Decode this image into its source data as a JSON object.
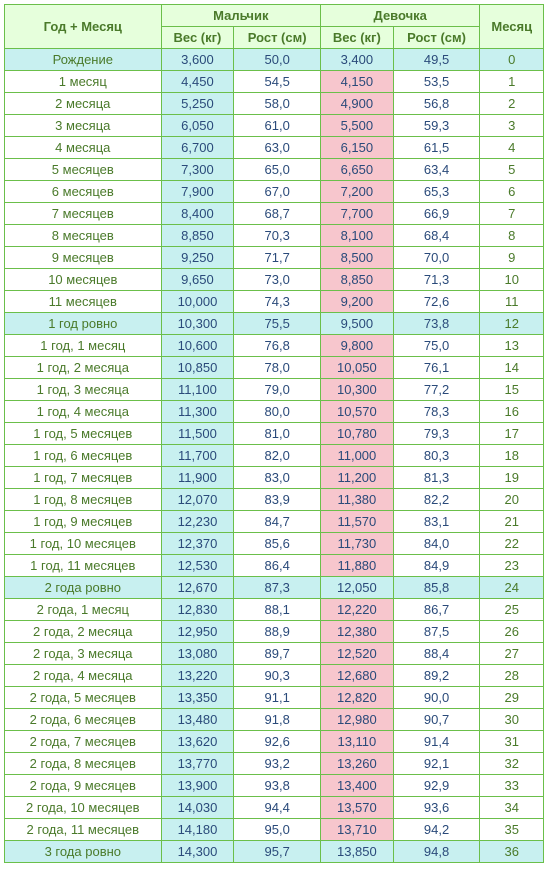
{
  "headers": {
    "age": "Год + Месяц",
    "boy": "Мальчик",
    "girl": "Девочка",
    "month": "Месяц",
    "weight": "Вес (кг)",
    "height": "Рост (см)"
  },
  "colors": {
    "border": "#6bbf4a",
    "header_bg": "#e6ffdc",
    "header_fg": "#4a7a2a",
    "boy_weight_bg": "#c8f0f0",
    "girl_weight_bg": "#f7c6cd",
    "value_fg": "#2a4a7a",
    "milestone_bg": "#c8f0f0"
  },
  "rows": [
    {
      "age": "Рождение",
      "bw": "3,600",
      "bh": "50,0",
      "gw": "3,400",
      "gh": "49,5",
      "m": "0",
      "milestone": true
    },
    {
      "age": "1 месяц",
      "bw": "4,450",
      "bh": "54,5",
      "gw": "4,150",
      "gh": "53,5",
      "m": "1"
    },
    {
      "age": "2 месяца",
      "bw": "5,250",
      "bh": "58,0",
      "gw": "4,900",
      "gh": "56,8",
      "m": "2"
    },
    {
      "age": "3 месяца",
      "bw": "6,050",
      "bh": "61,0",
      "gw": "5,500",
      "gh": "59,3",
      "m": "3"
    },
    {
      "age": "4 месяца",
      "bw": "6,700",
      "bh": "63,0",
      "gw": "6,150",
      "gh": "61,5",
      "m": "4"
    },
    {
      "age": "5 месяцев",
      "bw": "7,300",
      "bh": "65,0",
      "gw": "6,650",
      "gh": "63,4",
      "m": "5"
    },
    {
      "age": "6 месяцев",
      "bw": "7,900",
      "bh": "67,0",
      "gw": "7,200",
      "gh": "65,3",
      "m": "6"
    },
    {
      "age": "7 месяцев",
      "bw": "8,400",
      "bh": "68,7",
      "gw": "7,700",
      "gh": "66,9",
      "m": "7"
    },
    {
      "age": "8 месяцев",
      "bw": "8,850",
      "bh": "70,3",
      "gw": "8,100",
      "gh": "68,4",
      "m": "8"
    },
    {
      "age": "9 месяцев",
      "bw": "9,250",
      "bh": "71,7",
      "gw": "8,500",
      "gh": "70,0",
      "m": "9"
    },
    {
      "age": "10 месяцев",
      "bw": "9,650",
      "bh": "73,0",
      "gw": "8,850",
      "gh": "71,3",
      "m": "10"
    },
    {
      "age": "11 месяцев",
      "bw": "10,000",
      "bh": "74,3",
      "gw": "9,200",
      "gh": "72,6",
      "m": "11"
    },
    {
      "age": "1 год ровно",
      "bw": "10,300",
      "bh": "75,5",
      "gw": "9,500",
      "gh": "73,8",
      "m": "12",
      "milestone": true
    },
    {
      "age": "1 год, 1 месяц",
      "bw": "10,600",
      "bh": "76,8",
      "gw": "9,800",
      "gh": "75,0",
      "m": "13"
    },
    {
      "age": "1 год, 2 месяца",
      "bw": "10,850",
      "bh": "78,0",
      "gw": "10,050",
      "gh": "76,1",
      "m": "14"
    },
    {
      "age": "1 год, 3 месяца",
      "bw": "11,100",
      "bh": "79,0",
      "gw": "10,300",
      "gh": "77,2",
      "m": "15"
    },
    {
      "age": "1 год, 4 месяца",
      "bw": "11,300",
      "bh": "80,0",
      "gw": "10,570",
      "gh": "78,3",
      "m": "16"
    },
    {
      "age": "1 год, 5 месяцев",
      "bw": "11,500",
      "bh": "81,0",
      "gw": "10,780",
      "gh": "79,3",
      "m": "17"
    },
    {
      "age": "1 год, 6 месяцев",
      "bw": "11,700",
      "bh": "82,0",
      "gw": "11,000",
      "gh": "80,3",
      "m": "18"
    },
    {
      "age": "1 год, 7 месяцев",
      "bw": "11,900",
      "bh": "83,0",
      "gw": "11,200",
      "gh": "81,3",
      "m": "19"
    },
    {
      "age": "1 год, 8 месяцев",
      "bw": "12,070",
      "bh": "83,9",
      "gw": "11,380",
      "gh": "82,2",
      "m": "20"
    },
    {
      "age": "1 год, 9 месяцев",
      "bw": "12,230",
      "bh": "84,7",
      "gw": "11,570",
      "gh": "83,1",
      "m": "21"
    },
    {
      "age": "1 год, 10 месяцев",
      "bw": "12,370",
      "bh": "85,6",
      "gw": "11,730",
      "gh": "84,0",
      "m": "22"
    },
    {
      "age": "1 год, 11 месяцев",
      "bw": "12,530",
      "bh": "86,4",
      "gw": "11,880",
      "gh": "84,9",
      "m": "23"
    },
    {
      "age": "2 года ровно",
      "bw": "12,670",
      "bh": "87,3",
      "gw": "12,050",
      "gh": "85,8",
      "m": "24",
      "milestone": true
    },
    {
      "age": "2 года, 1 месяц",
      "bw": "12,830",
      "bh": "88,1",
      "gw": "12,220",
      "gh": "86,7",
      "m": "25"
    },
    {
      "age": "2 года, 2 месяца",
      "bw": "12,950",
      "bh": "88,9",
      "gw": "12,380",
      "gh": "87,5",
      "m": "26"
    },
    {
      "age": "2 года, 3 месяца",
      "bw": "13,080",
      "bh": "89,7",
      "gw": "12,520",
      "gh": "88,4",
      "m": "27"
    },
    {
      "age": "2 года, 4 месяца",
      "bw": "13,220",
      "bh": "90,3",
      "gw": "12,680",
      "gh": "89,2",
      "m": "28"
    },
    {
      "age": "2 года, 5 месяцев",
      "bw": "13,350",
      "bh": "91,1",
      "gw": "12,820",
      "gh": "90,0",
      "m": "29"
    },
    {
      "age": "2 года, 6 месяцев",
      "bw": "13,480",
      "bh": "91,8",
      "gw": "12,980",
      "gh": "90,7",
      "m": "30"
    },
    {
      "age": "2 года, 7 месяцев",
      "bw": "13,620",
      "bh": "92,6",
      "gw": "13,110",
      "gh": "91,4",
      "m": "31"
    },
    {
      "age": "2 года, 8 месяцев",
      "bw": "13,770",
      "bh": "93,2",
      "gw": "13,260",
      "gh": "92,1",
      "m": "32"
    },
    {
      "age": "2 года, 9 месяцев",
      "bw": "13,900",
      "bh": "93,8",
      "gw": "13,400",
      "gh": "92,9",
      "m": "33"
    },
    {
      "age": "2 года, 10 месяцев",
      "bw": "14,030",
      "bh": "94,4",
      "gw": "13,570",
      "gh": "93,6",
      "m": "34"
    },
    {
      "age": "2 года, 11 месяцев",
      "bw": "14,180",
      "bh": "95,0",
      "gw": "13,710",
      "gh": "94,2",
      "m": "35"
    },
    {
      "age": "3 года ровно",
      "bw": "14,300",
      "bh": "95,7",
      "gw": "13,850",
      "gh": "94,8",
      "m": "36",
      "milestone": true
    }
  ]
}
